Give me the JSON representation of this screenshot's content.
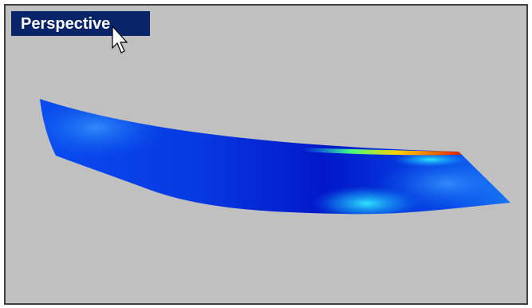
{
  "viewport": {
    "title": "Perspective"
  }
}
